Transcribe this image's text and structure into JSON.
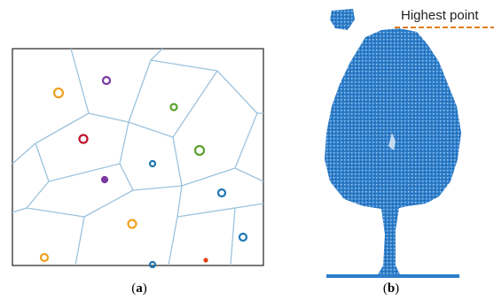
{
  "panels": [
    {
      "caption": {
        "open": "(",
        "letter": "a",
        "close": ")"
      }
    },
    {
      "annotation": "Highest point",
      "caption": {
        "open": "(",
        "letter": "b",
        "close": ")"
      }
    }
  ]
}
